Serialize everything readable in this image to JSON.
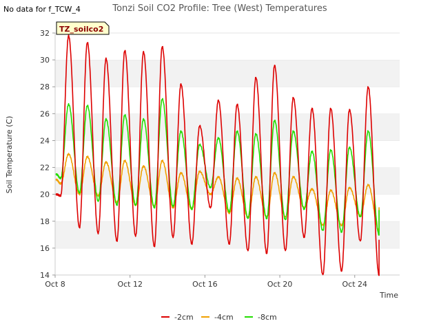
{
  "page": {
    "no_data_text": "No data for f_TCW_4",
    "site_badge": "TZ_soilco2"
  },
  "chart_data": {
    "type": "line",
    "title": "Tonzi Soil CO2 Profile: Tree (West) Temperatures",
    "xlabel": "Time",
    "ylabel": "Soil Temperature (C)",
    "xlim": [
      0,
      18.4
    ],
    "ylim": [
      14,
      32
    ],
    "x_tick_labels": [
      {
        "x": 0,
        "label": "Oct 8"
      },
      {
        "x": 4,
        "label": "Oct 12"
      },
      {
        "x": 8,
        "label": "Oct 16"
      },
      {
        "x": 12,
        "label": "Oct 20"
      },
      {
        "x": 16,
        "label": "Oct 24"
      }
    ],
    "y_ticks": [
      14,
      16,
      18,
      20,
      22,
      24,
      26,
      28,
      30,
      32
    ],
    "grid": "horizontal bands",
    "legend_position": "bottom-center",
    "series": [
      {
        "name": "-2cm",
        "color": "#dd0000",
        "daily_min": [
          19.9,
          17.5,
          17.1,
          16.5,
          16.9,
          16.1,
          16.8,
          16.3,
          19.0,
          16.3,
          15.8,
          15.6,
          15.8,
          16.8,
          14.0,
          14.3,
          16.5,
          14.0,
          16.6
        ],
        "daily_max": [
          31.8,
          31.3,
          30.1,
          30.7,
          30.6,
          31.0,
          28.2,
          25.1,
          27.0,
          26.7,
          28.7,
          29.6,
          27.2,
          26.4,
          26.4,
          26.3,
          28.0
        ]
      },
      {
        "name": "-4cm",
        "color": "#f0a000",
        "daily_min": [
          20.8,
          20.0,
          19.9,
          19.4,
          19.2,
          19.1,
          19.0,
          18.9,
          20.0,
          18.6,
          18.3,
          18.3,
          18.3,
          19.0,
          17.7,
          17.7,
          18.4,
          17.3,
          19.0
        ],
        "daily_max": [
          23.0,
          22.8,
          22.4,
          22.5,
          22.1,
          22.5,
          21.6,
          21.7,
          21.3,
          21.2,
          21.3,
          21.6,
          21.3,
          20.4,
          20.3,
          20.5,
          20.7
        ]
      },
      {
        "name": "-8cm",
        "color": "#22dd00",
        "daily_min": [
          21.2,
          20.1,
          19.5,
          19.2,
          19.2,
          19.0,
          19.1,
          18.9,
          20.5,
          18.7,
          18.2,
          18.2,
          18.1,
          18.9,
          17.3,
          17.2,
          18.3,
          17.0,
          18.8
        ],
        "daily_max": [
          26.7,
          26.6,
          25.6,
          25.9,
          25.6,
          27.1,
          24.7,
          23.7,
          24.2,
          24.7,
          24.5,
          25.5,
          24.7,
          23.2,
          23.3,
          23.5,
          24.7
        ]
      }
    ]
  }
}
